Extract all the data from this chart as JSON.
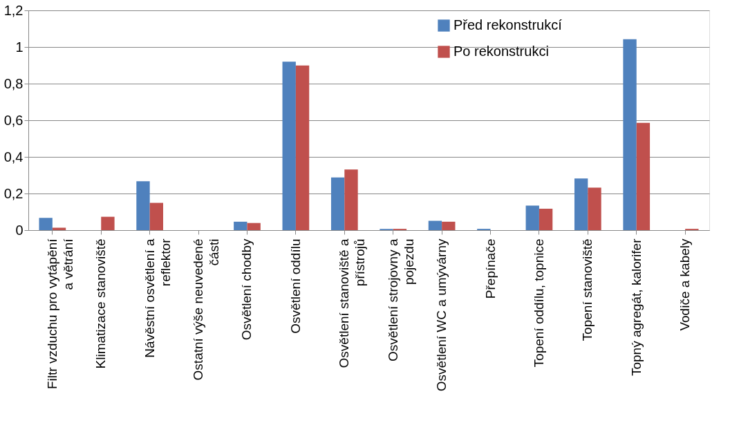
{
  "chart_data": {
    "type": "bar",
    "categories": [
      "Filtr vzduchu pro vytápění\na větrání",
      "Klimatizace stanoviště",
      "Návěstní osvětlení a\nreflektor",
      "Ostatní výše neuvedené\nčásti",
      "Osvětlení chodby",
      "Osvětlení oddílu",
      "Osvětlení stanoviště a\npřístrojů",
      "Osvětlení strojovny a\npojezdu",
      "Osvětlení WC a umývárny",
      "Přepínače",
      "Topení oddílu, topnice",
      "Topení stanoviště",
      "Topný agregát, kalorifer",
      "Vodiče a kabely"
    ],
    "series": [
      {
        "name": "Před rekonstrukcí",
        "color": "#4f81bd",
        "values": [
          0.067,
          0,
          0.267,
          0,
          0.046,
          0.92,
          0.288,
          0.007,
          0.051,
          0.007,
          0.134,
          0.282,
          1.042,
          0
        ]
      },
      {
        "name": "Po rekonstrukci",
        "color": "#c0504d",
        "values": [
          0.013,
          0.073,
          0.149,
          0,
          0.039,
          0.899,
          0.331,
          0.007,
          0.046,
          0,
          0.117,
          0.232,
          0.586,
          0.007
        ]
      }
    ],
    "ylim": [
      0,
      1.2
    ],
    "yticks": [
      0,
      {
        "value": 0.2,
        "label": "0,2"
      },
      {
        "value": 0.4,
        "label": "0,4"
      },
      {
        "value": 0.6,
        "label": "0,6"
      },
      {
        "value": 0.8,
        "label": "0,8"
      },
      1,
      {
        "value": 1.2,
        "label": "1,2"
      }
    ],
    "grid": "y",
    "legend": "top right"
  }
}
